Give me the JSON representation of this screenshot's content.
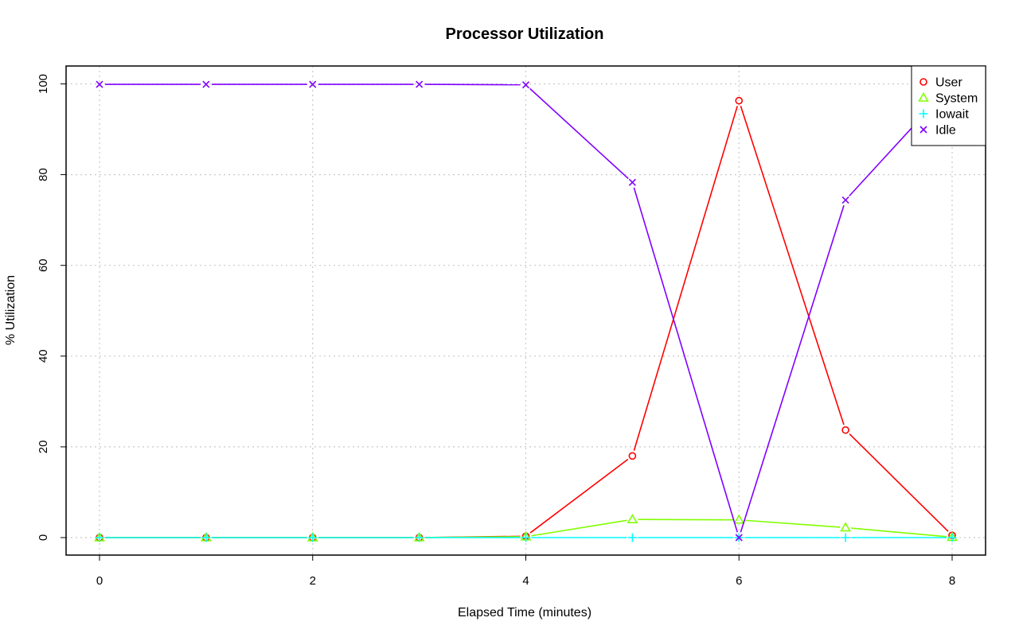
{
  "chart_data": {
    "type": "line",
    "title": "Processor Utilization",
    "xlabel": "Elapsed Time (minutes)",
    "ylabel": "% Utilization",
    "x": [
      0,
      1,
      2,
      3,
      4,
      5,
      6,
      7,
      8
    ],
    "xlim": [
      0,
      8
    ],
    "ylim": [
      0,
      100
    ],
    "xticks": [
      0,
      2,
      4,
      6,
      8
    ],
    "yticks": [
      0,
      20,
      40,
      60,
      80,
      100
    ],
    "grid": true,
    "legend_position": "top-right",
    "series": [
      {
        "name": "User",
        "color": "#ff0000",
        "marker": "circle",
        "values": [
          0,
          0,
          0,
          0,
          0.3,
          18,
          96.3,
          23.7,
          0.5
        ]
      },
      {
        "name": "System",
        "color": "#80ff00",
        "marker": "triangle",
        "values": [
          0,
          0,
          0,
          0,
          0.2,
          4,
          3.9,
          2.2,
          0.1
        ]
      },
      {
        "name": "Iowait",
        "color": "#00ffff",
        "marker": "plus",
        "values": [
          0,
          0,
          0,
          0,
          0,
          0,
          0,
          0,
          0
        ]
      },
      {
        "name": "Idle",
        "color": "#8000ff",
        "marker": "cross",
        "values": [
          99.9,
          99.9,
          99.9,
          99.9,
          99.8,
          78.3,
          0,
          74.4,
          100
        ]
      }
    ]
  }
}
